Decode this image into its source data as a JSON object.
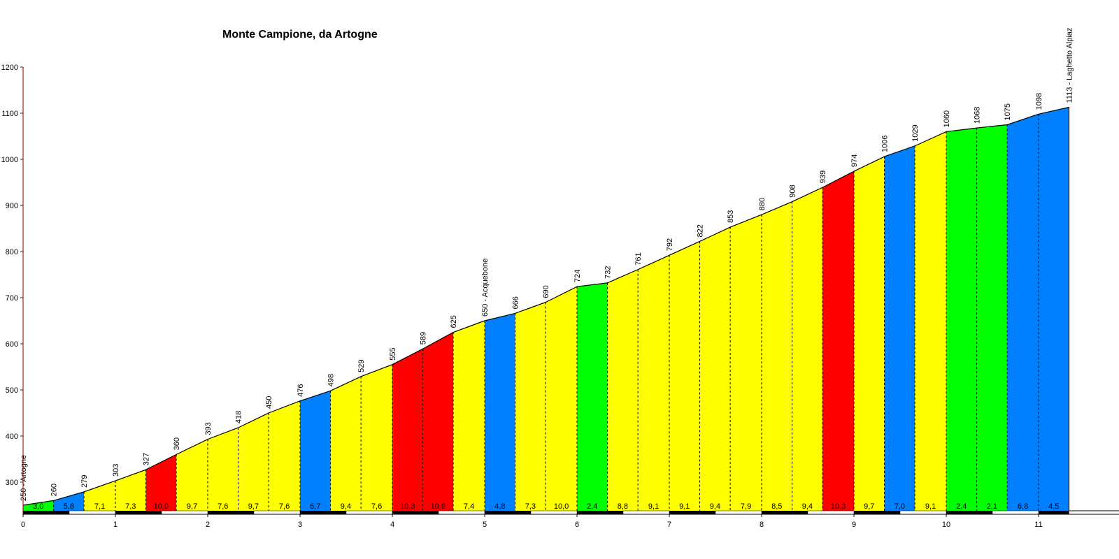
{
  "chart_data": {
    "type": "area",
    "title": "Monte Campione, da Artogne",
    "xlabel": "",
    "ylabel": "",
    "xlim": [
      0,
      11.5
    ],
    "ylim": [
      230,
      1200
    ],
    "x_ticks": [
      "0",
      "1",
      "2",
      "3",
      "4",
      "5",
      "6",
      "7",
      "8",
      "9",
      "10",
      "11"
    ],
    "y_ticks": [
      "300",
      "400",
      "500",
      "600",
      "700",
      "800",
      "900",
      "1000",
      "1100",
      "1200"
    ],
    "y_tick_values": [
      300,
      400,
      500,
      600,
      700,
      800,
      900,
      1000,
      1100,
      1200
    ],
    "profile": [
      {
        "km": 0.0,
        "elevation": 250,
        "label": "250 - Artogne"
      },
      {
        "km": 0.33,
        "elevation": 260,
        "label": "260"
      },
      {
        "km": 0.66,
        "elevation": 279,
        "label": "279"
      },
      {
        "km": 1.0,
        "elevation": 303,
        "label": "303"
      },
      {
        "km": 1.33,
        "elevation": 327,
        "label": "327"
      },
      {
        "km": 1.66,
        "elevation": 360,
        "label": "360"
      },
      {
        "km": 2.0,
        "elevation": 393,
        "label": "393"
      },
      {
        "km": 2.33,
        "elevation": 418,
        "label": "418"
      },
      {
        "km": 2.66,
        "elevation": 450,
        "label": "450"
      },
      {
        "km": 3.0,
        "elevation": 476,
        "label": "476"
      },
      {
        "km": 3.33,
        "elevation": 498,
        "label": "498"
      },
      {
        "km": 3.66,
        "elevation": 529,
        "label": "529"
      },
      {
        "km": 4.0,
        "elevation": 555,
        "label": "555"
      },
      {
        "km": 4.33,
        "elevation": 589,
        "label": "589"
      },
      {
        "km": 4.66,
        "elevation": 625,
        "label": "625"
      },
      {
        "km": 5.0,
        "elevation": 650,
        "label": "650 - Acquebone"
      },
      {
        "km": 5.33,
        "elevation": 666,
        "label": "666"
      },
      {
        "km": 5.66,
        "elevation": 690,
        "label": "690"
      },
      {
        "km": 6.0,
        "elevation": 724,
        "label": "724"
      },
      {
        "km": 6.33,
        "elevation": 732,
        "label": "732"
      },
      {
        "km": 6.66,
        "elevation": 761,
        "label": "761"
      },
      {
        "km": 7.0,
        "elevation": 792,
        "label": "792"
      },
      {
        "km": 7.33,
        "elevation": 822,
        "label": "822"
      },
      {
        "km": 7.66,
        "elevation": 853,
        "label": "853"
      },
      {
        "km": 8.0,
        "elevation": 880,
        "label": "880"
      },
      {
        "km": 8.33,
        "elevation": 908,
        "label": "908"
      },
      {
        "km": 8.66,
        "elevation": 939,
        "label": "939"
      },
      {
        "km": 9.0,
        "elevation": 974,
        "label": "974"
      },
      {
        "km": 9.33,
        "elevation": 1006,
        "label": "1006"
      },
      {
        "km": 9.66,
        "elevation": 1029,
        "label": "1029"
      },
      {
        "km": 10.0,
        "elevation": 1060,
        "label": "1060"
      },
      {
        "km": 10.33,
        "elevation": 1068,
        "label": "1068"
      },
      {
        "km": 10.66,
        "elevation": 1075,
        "label": "1075"
      },
      {
        "km": 11.0,
        "elevation": 1098,
        "label": "1098"
      },
      {
        "km": 11.33,
        "elevation": 1113,
        "label": "1113 - Laghetto Alpiaz"
      }
    ],
    "segments": [
      {
        "grade": "3,0",
        "color": "#00ff00"
      },
      {
        "grade": "5,8",
        "color": "#0080ff"
      },
      {
        "grade": "7,1",
        "color": "#ffff00"
      },
      {
        "grade": "7,3",
        "color": "#ffff00"
      },
      {
        "grade": "10,0",
        "color": "#ff0000"
      },
      {
        "grade": "9,7",
        "color": "#ffff00"
      },
      {
        "grade": "7,6",
        "color": "#ffff00"
      },
      {
        "grade": "9,7",
        "color": "#ffff00"
      },
      {
        "grade": "7,6",
        "color": "#ffff00"
      },
      {
        "grade": "6,7",
        "color": "#0080ff"
      },
      {
        "grade": "9,4",
        "color": "#ffff00"
      },
      {
        "grade": "7,6",
        "color": "#ffff00"
      },
      {
        "grade": "10,3",
        "color": "#ff0000"
      },
      {
        "grade": "10,9",
        "color": "#ff0000"
      },
      {
        "grade": "7,4",
        "color": "#ffff00"
      },
      {
        "grade": "4,8",
        "color": "#0080ff"
      },
      {
        "grade": "7,3",
        "color": "#ffff00"
      },
      {
        "grade": "10,0",
        "color": "#ffff00"
      },
      {
        "grade": "2,4",
        "color": "#00ff00"
      },
      {
        "grade": "8,8",
        "color": "#ffff00"
      },
      {
        "grade": "9,1",
        "color": "#ffff00"
      },
      {
        "grade": "9,1",
        "color": "#ffff00"
      },
      {
        "grade": "9,4",
        "color": "#ffff00"
      },
      {
        "grade": "7,9",
        "color": "#ffff00"
      },
      {
        "grade": "8,5",
        "color": "#ffff00"
      },
      {
        "grade": "9,4",
        "color": "#ffff00"
      },
      {
        "grade": "10,3",
        "color": "#ff0000"
      },
      {
        "grade": "9,7",
        "color": "#ffff00"
      },
      {
        "grade": "7,0",
        "color": "#0080ff"
      },
      {
        "grade": "9,1",
        "color": "#ffff00"
      },
      {
        "grade": "2,4",
        "color": "#00ff00"
      },
      {
        "grade": "2,1",
        "color": "#00ff00"
      },
      {
        "grade": "6,8",
        "color": "#0080ff"
      },
      {
        "grade": "4,5",
        "color": "#0080ff"
      }
    ],
    "colors": {
      "axis": "#800000",
      "outline": "#000000",
      "km_band_dark": "#000000",
      "km_band_light": "#ffffff"
    },
    "grid": false,
    "legend": "none"
  }
}
